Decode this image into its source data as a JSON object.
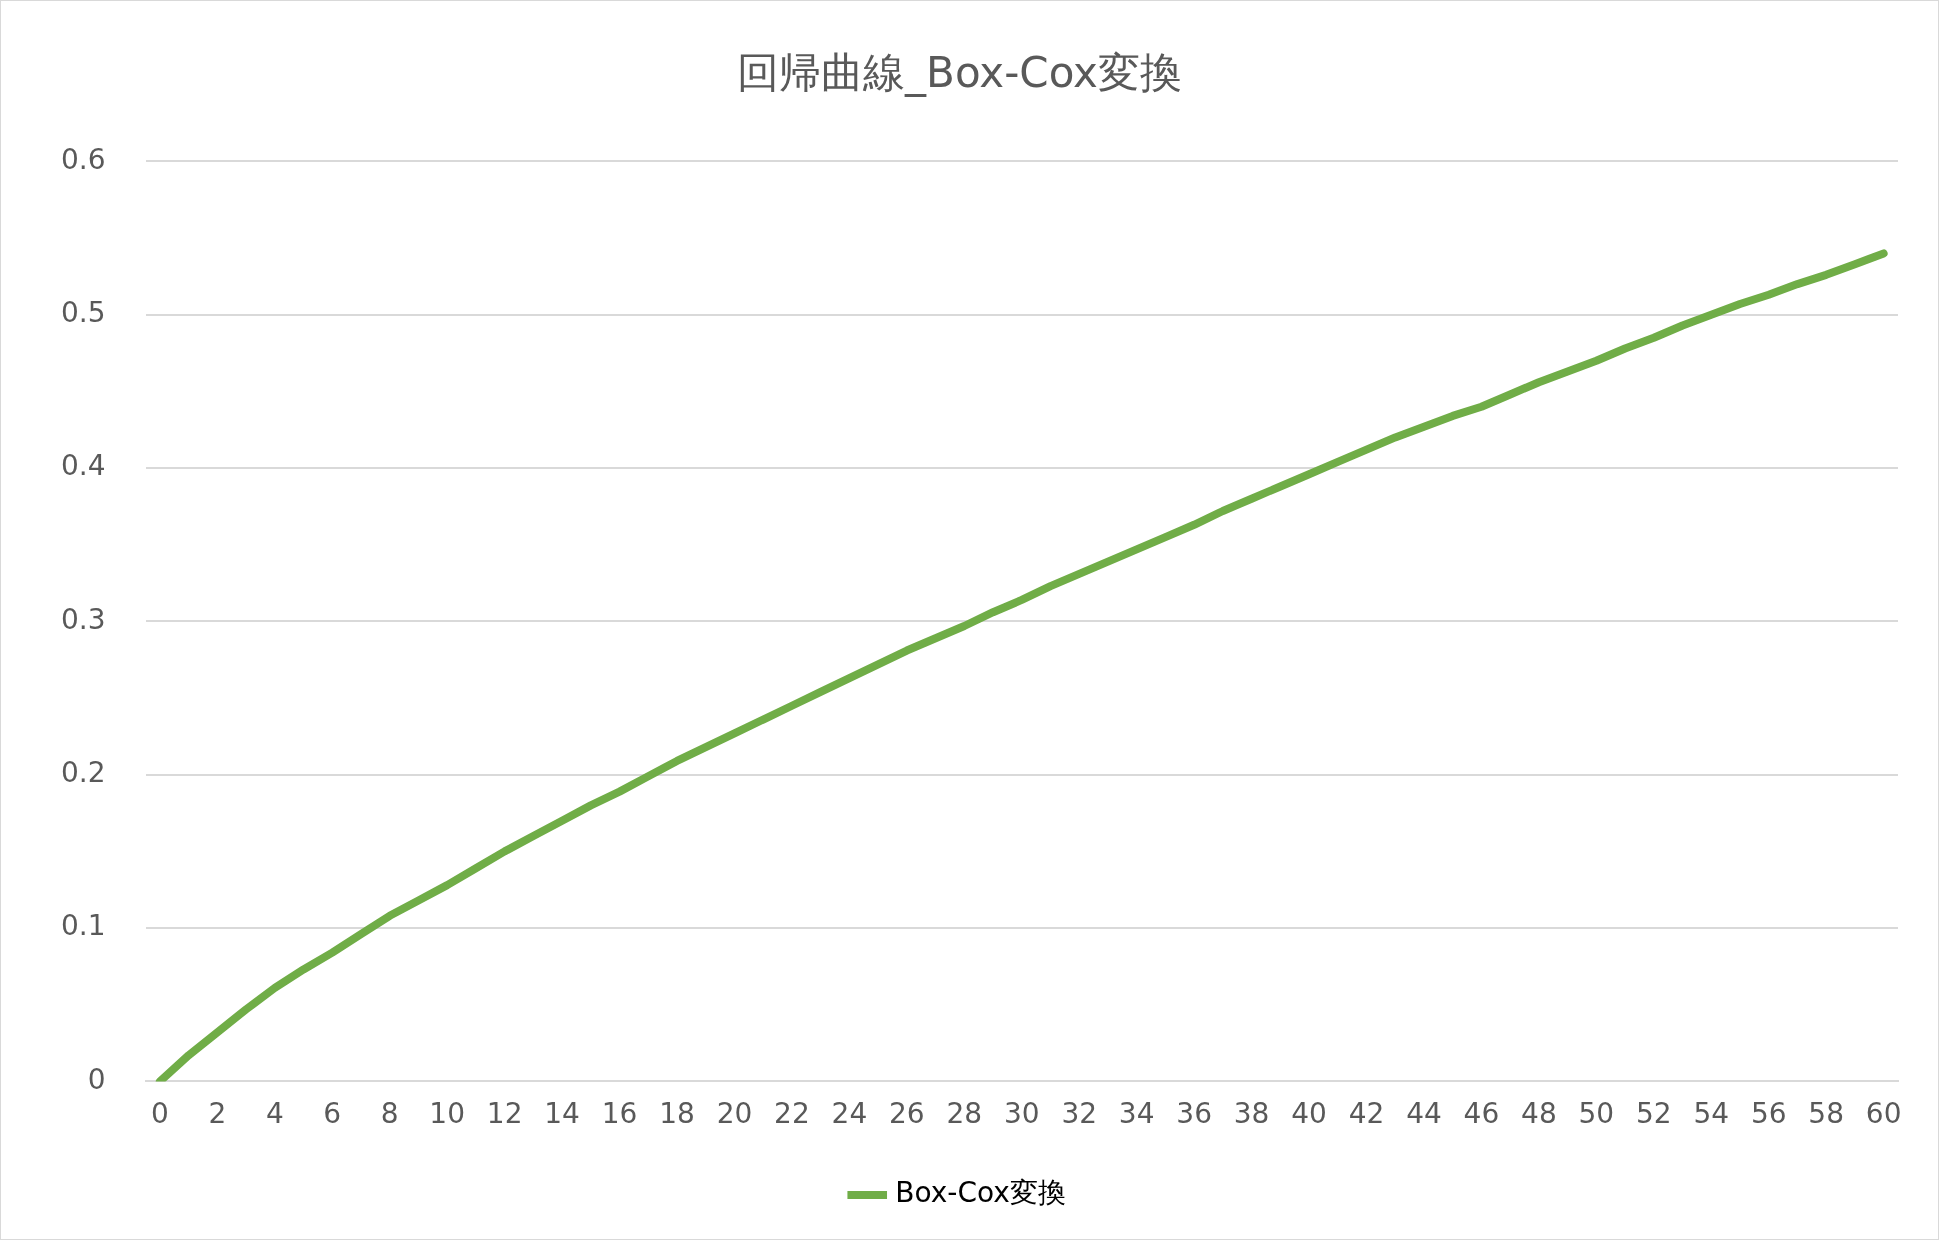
{
  "chart_data": {
    "type": "line",
    "title": "回帰曲線_Box-Cox変換",
    "x": [
      0,
      1,
      2,
      3,
      4,
      5,
      6,
      7,
      8,
      9,
      10,
      11,
      12,
      13,
      14,
      15,
      16,
      17,
      18,
      19,
      20,
      21,
      22,
      23,
      24,
      25,
      26,
      27,
      28,
      29,
      30,
      31,
      32,
      33,
      34,
      35,
      36,
      37,
      38,
      39,
      40,
      41,
      42,
      43,
      44,
      45,
      46,
      47,
      48,
      49,
      50,
      51,
      52,
      53,
      54,
      55,
      56,
      57,
      58,
      59,
      60
    ],
    "series": [
      {
        "name": "Box-Cox変換",
        "color": "#70ad47",
        "values": [
          0,
          0.017,
          0.032,
          0.047,
          0.061,
          0.073,
          0.084,
          0.096,
          0.108,
          0.118,
          0.128,
          0.139,
          0.15,
          0.16,
          0.17,
          0.18,
          0.189,
          0.199,
          0.209,
          0.218,
          0.227,
          0.236,
          0.245,
          0.254,
          0.263,
          0.272,
          0.281,
          0.289,
          0.297,
          0.306,
          0.314,
          0.323,
          0.331,
          0.339,
          0.347,
          0.355,
          0.363,
          0.372,
          0.38,
          0.388,
          0.396,
          0.404,
          0.412,
          0.42,
          0.427,
          0.434,
          0.44,
          0.448,
          0.456,
          0.463,
          0.47,
          0.478,
          0.485,
          0.493,
          0.5,
          0.507,
          0.513,
          0.52,
          0.526,
          0.533,
          0.54
        ]
      }
    ],
    "xlim": [
      -0.5,
      60.5
    ],
    "xticks": [
      0,
      2,
      4,
      6,
      8,
      10,
      12,
      14,
      16,
      18,
      20,
      22,
      24,
      26,
      28,
      30,
      32,
      34,
      36,
      38,
      40,
      42,
      44,
      46,
      48,
      50,
      52,
      54,
      56,
      58,
      60
    ],
    "ylim": [
      0,
      0.6
    ],
    "yticks": [
      0,
      0.1,
      0.2,
      0.3,
      0.4,
      0.5,
      0.6
    ],
    "grid": "y",
    "legend": "bottom",
    "marker": "none",
    "line_style": "solid"
  }
}
